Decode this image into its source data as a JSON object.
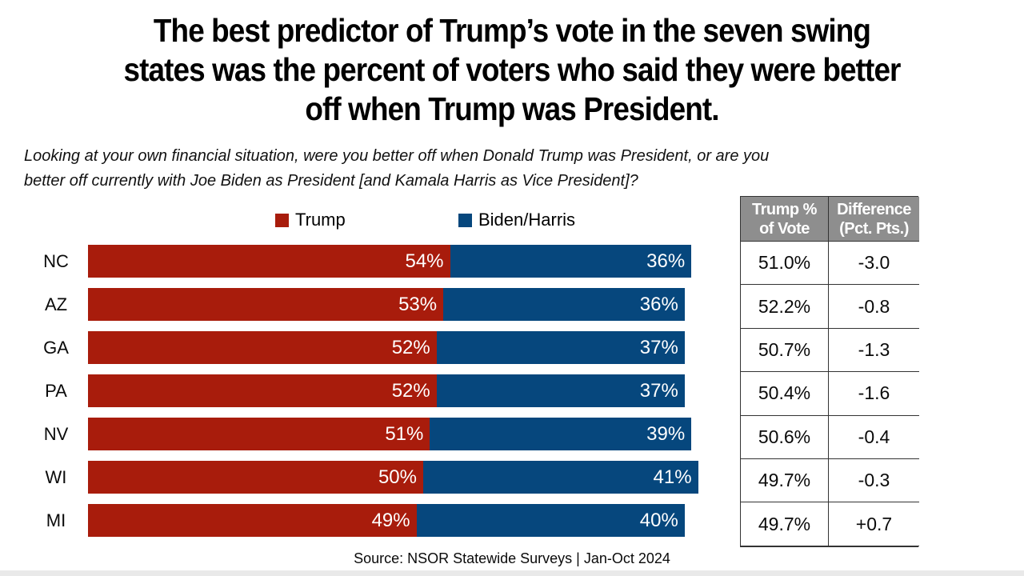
{
  "title_lines": [
    "The best predictor of Trump’s vote in the seven swing",
    "states was the percent of voters who said they were better",
    "off when Trump was President."
  ],
  "subtitle_lines": [
    "Looking at your own financial situation, were you better off when Donald Trump was President, or are you",
    "better off currently with Joe Biden as President [and Kamala Harris as Vice President]?"
  ],
  "legend": {
    "trump_label": "Trump",
    "biden_label": "Biden/Harris"
  },
  "colors": {
    "trump": "#A81C0C",
    "biden": "#06477D",
    "table_header_bg": "#8E8E8E"
  },
  "chart_data": {
    "type": "bar",
    "orientation": "horizontal",
    "stacked": true,
    "xlim": [
      0,
      100
    ],
    "categories": [
      "NC",
      "AZ",
      "GA",
      "PA",
      "NV",
      "WI",
      "MI"
    ],
    "series": [
      {
        "name": "Trump",
        "color": "#A81C0C",
        "values": [
          54,
          53,
          52,
          52,
          51,
          50,
          49
        ],
        "labels": [
          "54%",
          "53%",
          "52%",
          "52%",
          "51%",
          "50%",
          "49%"
        ]
      },
      {
        "name": "Biden/Harris",
        "color": "#06477D",
        "values": [
          36,
          36,
          37,
          37,
          39,
          41,
          40
        ],
        "labels": [
          "36%",
          "36%",
          "37%",
          "37%",
          "39%",
          "41%",
          "40%"
        ]
      }
    ]
  },
  "table": {
    "headers": [
      "Trump % of Vote",
      "Difference (Pct. Pts.)"
    ],
    "rows": [
      [
        "51.0%",
        "-3.0"
      ],
      [
        "52.2%",
        "-0.8"
      ],
      [
        "50.7%",
        "-1.3"
      ],
      [
        "50.4%",
        "-1.6"
      ],
      [
        "50.6%",
        "-0.4"
      ],
      [
        "49.7%",
        "-0.3"
      ],
      [
        "49.7%",
        "+0.7"
      ]
    ]
  },
  "source": "Source: NSOR Statewide Surveys | Jan-Oct 2024"
}
